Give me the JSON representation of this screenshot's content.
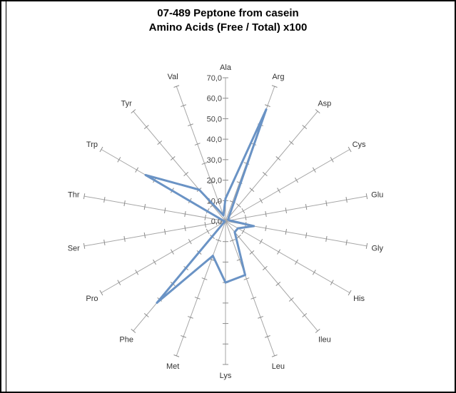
{
  "chart_data": {
    "type": "radar",
    "title": "07-489 Peptone from casein",
    "subtitle": "Amino Acids (Free / Total) x100",
    "categories": [
      "Ala",
      "Arg",
      "Asp",
      "Cys",
      "Glu",
      "Gly",
      "His",
      "Ileu",
      "Leu",
      "Lys",
      "Met",
      "Phe",
      "Pro",
      "Ser",
      "Thr",
      "Trp",
      "Tyr",
      "Val"
    ],
    "values": [
      11.0,
      58.0,
      2.5,
      1.5,
      2.0,
      14.0,
      7.0,
      7.0,
      28.0,
      30.0,
      18.0,
      52.0,
      0.5,
      0.5,
      1.0,
      45.0,
      20.0,
      3.0
    ],
    "rlim": [
      0,
      70
    ],
    "ticks": [
      "0,0",
      "10,0",
      "20,0",
      "30,0",
      "40,0",
      "50,0",
      "60,0",
      "70,0"
    ],
    "series_color": "#6a93c5",
    "grid": false
  }
}
